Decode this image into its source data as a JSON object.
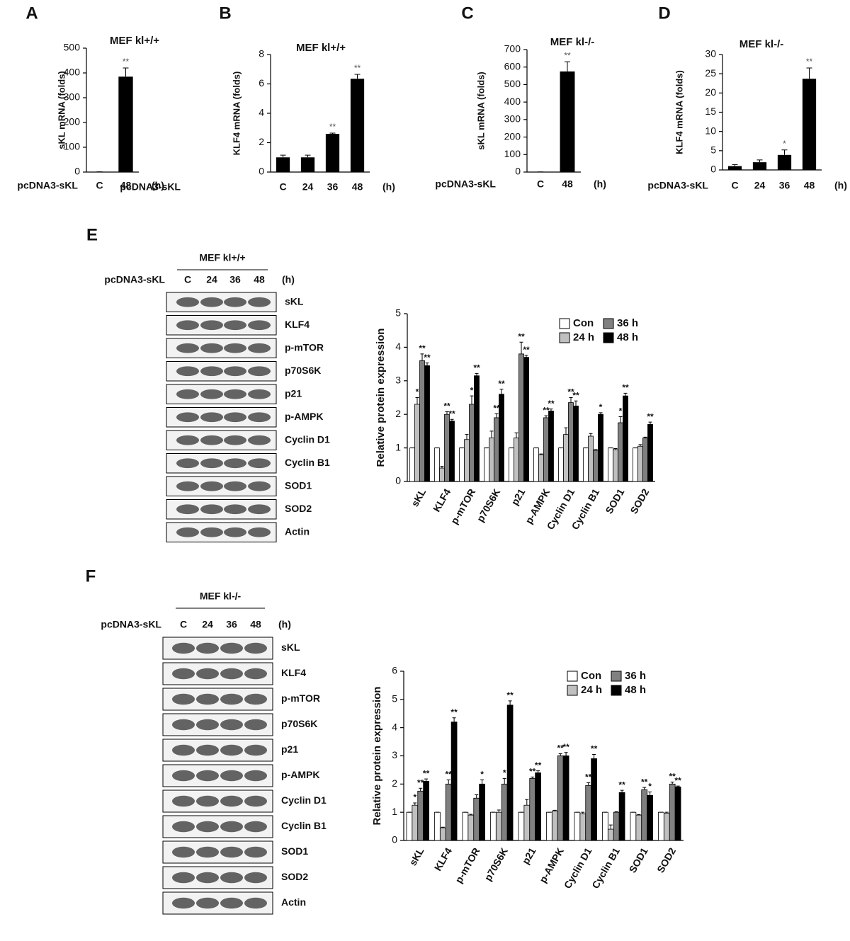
{
  "chart_data": [
    {
      "type": "bar",
      "panel": "A",
      "title": "MEF kl+/+",
      "ylabel": "sKL mRNA (folds)",
      "xlabel": "pcDNA3-sKL",
      "xunit": "(h)",
      "categories": [
        "C",
        "48"
      ],
      "values": [
        1,
        385
      ],
      "errors": [
        0,
        35
      ],
      "annotations": [
        null,
        "**"
      ],
      "color": "#000000",
      "ylim": [
        0,
        500
      ],
      "yticks": [
        0,
        100,
        200,
        300,
        400,
        500
      ]
    },
    {
      "type": "bar",
      "panel": "B",
      "title": "MEF kl+/+",
      "ylabel": "KLF4 mRNA (folds)",
      "xlabel": "pcDNA3-sKL",
      "xunit": "(h)",
      "categories": [
        "C",
        "24",
        "36",
        "48"
      ],
      "values": [
        1,
        1,
        2.6,
        6.35
      ],
      "errors": [
        0.15,
        0.15,
        0.05,
        0.3
      ],
      "annotations": [
        null,
        null,
        "**",
        "**"
      ],
      "color": "#000000",
      "ylim": [
        0,
        8
      ],
      "yticks": [
        0,
        2,
        4,
        6,
        8
      ]
    },
    {
      "type": "bar",
      "panel": "C",
      "title": "MEF kl-/-",
      "ylabel": "sKL mRNA (folds)",
      "xlabel": "pcDNA3-sKL",
      "xunit": "(h)",
      "categories": [
        "C",
        "48"
      ],
      "values": [
        1,
        575
      ],
      "errors": [
        0,
        55
      ],
      "annotations": [
        null,
        "**"
      ],
      "color": "#000000",
      "ylim": [
        0,
        700
      ],
      "yticks": [
        0,
        100,
        200,
        300,
        400,
        500,
        600,
        700
      ]
    },
    {
      "type": "bar",
      "panel": "D",
      "title": "MEF kl-/-",
      "ylabel": "KLF4 mRNA (folds)",
      "xlabel": "pcDNA3-sKL",
      "xunit": "(h)",
      "categories": [
        "C",
        "24",
        "36",
        "48"
      ],
      "values": [
        1,
        2,
        3.9,
        23.7
      ],
      "errors": [
        0.4,
        0.6,
        1.3,
        2.8
      ],
      "annotations": [
        null,
        null,
        "*",
        "**"
      ],
      "color": "#000000",
      "ylim": [
        0,
        30
      ],
      "yticks": [
        0,
        5,
        10,
        15,
        20,
        25,
        30
      ]
    },
    {
      "type": "grouped_bar",
      "panel": "E",
      "ylabel": "Relative protein expression",
      "categories": [
        "sKL",
        "KLF4",
        "p-mTOR",
        "p70S6K",
        "p21",
        "p-AMPK",
        "Cyclin D1",
        "Cyclin B1",
        "SOD1",
        "SOD2"
      ],
      "ylim": [
        0,
        5
      ],
      "yticks": [
        0,
        1,
        2,
        3,
        4,
        5
      ],
      "series": [
        {
          "name": "Con",
          "color": "#ffffff",
          "values": [
            1,
            1,
            1,
            1,
            1,
            1,
            1,
            1,
            1,
            1
          ],
          "errors": [
            0,
            0,
            0,
            0,
            0,
            0,
            0,
            0,
            0,
            0
          ],
          "annotations": [
            null,
            null,
            null,
            null,
            null,
            null,
            null,
            null,
            null,
            null
          ]
        },
        {
          "name": "24 h",
          "color": "#c0c0c0",
          "values": [
            2.3,
            0.4,
            1.25,
            1.3,
            1.3,
            0.8,
            1.4,
            1.35,
            0.95,
            1.05
          ],
          "errors": [
            0.2,
            0.05,
            0.15,
            0.2,
            0.15,
            0.02,
            0.2,
            0.08,
            0.03,
            0.05
          ],
          "annotations": [
            "*",
            null,
            null,
            null,
            null,
            null,
            null,
            null,
            null,
            null
          ]
        },
        {
          "name": "36 h",
          "color": "#808080",
          "values": [
            3.6,
            2.0,
            2.3,
            1.9,
            3.8,
            1.9,
            2.35,
            0.93,
            1.75,
            1.3
          ],
          "errors": [
            0.2,
            0.08,
            0.25,
            0.12,
            0.35,
            0.06,
            0.15,
            0.02,
            0.18,
            0.02
          ],
          "annotations": [
            "**",
            "**",
            "*",
            "**",
            "**",
            "**",
            "**",
            null,
            "*",
            null
          ]
        },
        {
          "name": "48 h",
          "color": "#000000",
          "values": [
            3.45,
            1.8,
            3.15,
            2.6,
            3.7,
            2.1,
            2.25,
            2.0,
            2.55,
            1.7
          ],
          "errors": [
            0.08,
            0.05,
            0.07,
            0.15,
            0.06,
            0.06,
            0.15,
            0.05,
            0.08,
            0.07
          ],
          "annotations": [
            "**",
            "**",
            "**",
            "**",
            "**",
            "**",
            "**",
            "*",
            "**",
            "**"
          ]
        }
      ]
    },
    {
      "type": "grouped_bar",
      "panel": "F",
      "ylabel": "Relative protein expression",
      "categories": [
        "sKL",
        "KLF4",
        "p-mTOR",
        "p70S6K",
        "p21",
        "p-AMPK",
        "Cyclin D1",
        "Cyclin B1",
        "SOD1",
        "SOD2"
      ],
      "ylim": [
        0,
        6
      ],
      "yticks": [
        0,
        1,
        2,
        3,
        4,
        5,
        6
      ],
      "series": [
        {
          "name": "Con",
          "color": "#ffffff",
          "values": [
            1,
            1,
            1,
            1,
            1,
            1,
            1,
            1,
            1,
            1
          ],
          "errors": [
            0,
            0,
            0,
            0,
            0,
            0,
            0,
            0,
            0,
            0
          ],
          "annotations": [
            null,
            null,
            null,
            null,
            null,
            null,
            null,
            null,
            null,
            null
          ]
        },
        {
          "name": "24 h",
          "color": "#c0c0c0",
          "values": [
            1.25,
            0.45,
            0.9,
            1.0,
            1.25,
            1.05,
            0.95,
            0.4,
            0.9,
            0.97
          ],
          "errors": [
            0.08,
            0.02,
            0.03,
            0.08,
            0.2,
            0.02,
            0.05,
            0.15,
            0.02,
            0.03
          ],
          "annotations": [
            "*",
            null,
            null,
            null,
            null,
            null,
            null,
            null,
            null,
            null
          ]
        },
        {
          "name": "36 h",
          "color": "#808080",
          "values": [
            1.75,
            2.0,
            1.5,
            2.0,
            2.2,
            3.0,
            1.95,
            1.0,
            1.8,
            2.0
          ],
          "errors": [
            0.1,
            0.15,
            0.12,
            0.2,
            0.05,
            0.08,
            0.1,
            0.02,
            0.08,
            0.07
          ],
          "annotations": [
            "**",
            "**",
            null,
            "*",
            "**",
            "**",
            "**",
            null,
            "**",
            "**"
          ]
        },
        {
          "name": "48 h",
          "color": "#000000",
          "values": [
            2.1,
            4.2,
            2.0,
            4.8,
            2.4,
            3.0,
            2.9,
            1.7,
            1.6,
            1.9
          ],
          "errors": [
            0.08,
            0.15,
            0.15,
            0.15,
            0.07,
            0.12,
            0.15,
            0.08,
            0.12,
            0.03
          ],
          "annotations": [
            "**",
            "**",
            "*",
            "**",
            "**",
            "**",
            "**",
            "**",
            "*",
            "**"
          ]
        }
      ]
    }
  ],
  "blots": [
    {
      "title": "MEF kl+/+",
      "row_label": "pcDNA3-sKL",
      "lanes": [
        "C",
        "24",
        "36",
        "48"
      ],
      "unit": "(h)",
      "bands": [
        "sKL",
        "KLF4",
        "p-mTOR",
        "p70S6K",
        "p21",
        "p-AMPK",
        "Cyclin D1",
        "Cyclin B1",
        "SOD1",
        "SOD2",
        "Actin"
      ]
    },
    {
      "title": "MEF kl-/-",
      "row_label": "pcDNA3-sKL",
      "lanes": [
        "C",
        "24",
        "36",
        "48"
      ],
      "unit": "(h)",
      "bands": [
        "sKL",
        "KLF4",
        "p-mTOR",
        "p70S6K",
        "p21",
        "p-AMPK",
        "Cyclin D1",
        "Cyclin B1",
        "SOD1",
        "SOD2",
        "Actin"
      ]
    }
  ]
}
